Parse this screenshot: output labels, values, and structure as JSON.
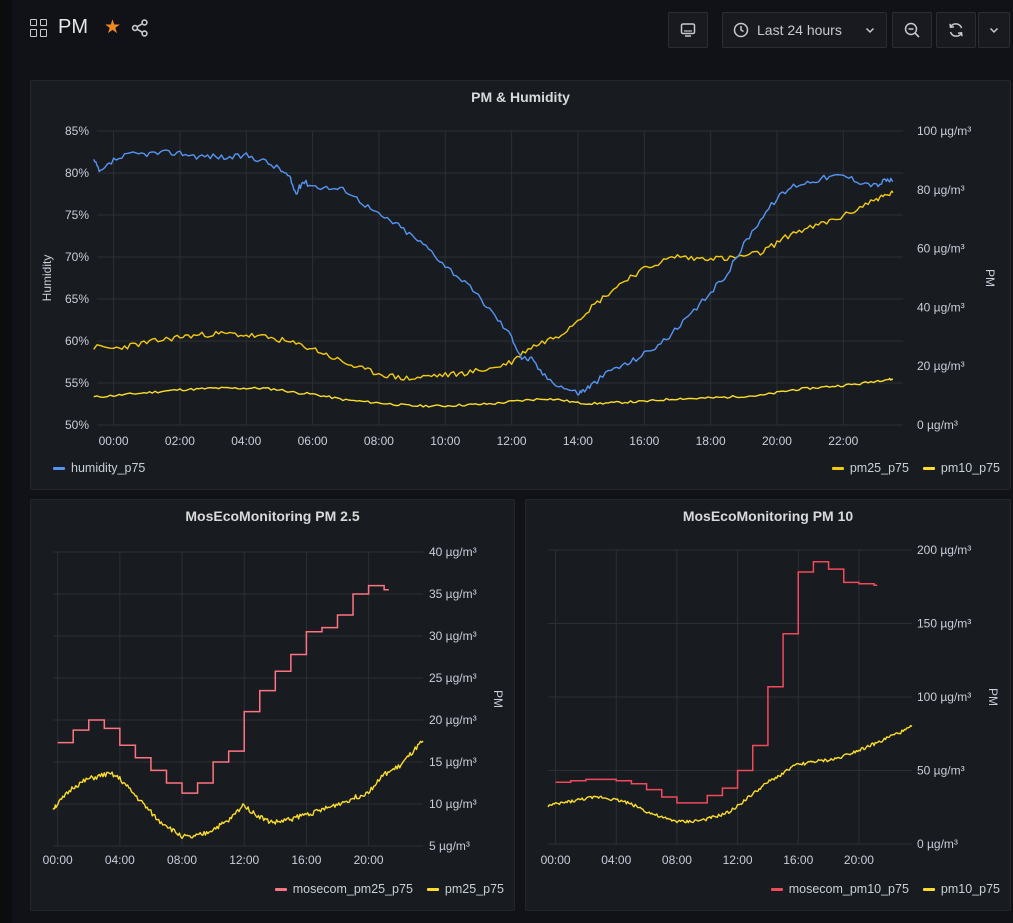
{
  "header": {
    "title": "PM",
    "time_range": "Last 24 hours",
    "icons": [
      "dashboard-grid-icon",
      "star-icon",
      "share-icon",
      "tv-mode-icon",
      "clock-icon",
      "chevron-down-icon",
      "zoom-out-icon",
      "refresh-icon",
      "chevron-down-icon"
    ]
  },
  "colors": {
    "humidity": "#5794f2",
    "pm25": "#f2cc0c",
    "pm10": "#fade2a",
    "mosecom": "#ff7383",
    "mosecom_pm10": "#f2495c",
    "accent_star": "#f2881f"
  },
  "panels": {
    "main": {
      "title": "PM & Humidity",
      "left_axis_label": "Humidity",
      "right_axis_label": "PM",
      "left_ticks": [
        "85%",
        "80%",
        "75%",
        "70%",
        "65%",
        "60%",
        "55%",
        "50%"
      ],
      "right_ticks": [
        "100 µg/m³",
        "80 µg/m³",
        "60 µg/m³",
        "40 µg/m³",
        "20 µg/m³",
        "0 µg/m³"
      ],
      "x_ticks": [
        "00:00",
        "02:00",
        "04:00",
        "06:00",
        "08:00",
        "10:00",
        "12:00",
        "14:00",
        "16:00",
        "18:00",
        "20:00",
        "22:00"
      ],
      "legend_left": [
        "humidity_p75"
      ],
      "legend_right": [
        "pm25_p75",
        "pm10_p75"
      ]
    },
    "pm25": {
      "title": "MosEcoMonitoring PM 2.5",
      "right_axis_label": "PM",
      "right_ticks": [
        "40 µg/m³",
        "35 µg/m³",
        "30 µg/m³",
        "25 µg/m³",
        "20 µg/m³",
        "15 µg/m³",
        "10 µg/m³",
        "5 µg/m³"
      ],
      "x_ticks": [
        "00:00",
        "04:00",
        "08:00",
        "12:00",
        "16:00",
        "20:00"
      ],
      "legend": [
        "mosecom_pm25_p75",
        "pm25_p75"
      ]
    },
    "pm10": {
      "title": "MosEcoMonitoring PM 10",
      "right_axis_label": "PM",
      "right_ticks": [
        "200 µg/m³",
        "150 µg/m³",
        "100 µg/m³",
        "50 µg/m³",
        "0 µg/m³"
      ],
      "x_ticks": [
        "00:00",
        "04:00",
        "08:00",
        "12:00",
        "16:00",
        "20:00"
      ],
      "legend": [
        "mosecom_pm10_p75",
        "pm10_p75"
      ]
    }
  },
  "chart_data": [
    {
      "type": "line",
      "title": "PM & Humidity",
      "x_unit": "hour",
      "xlim": [
        -0.5,
        23.8
      ],
      "ylabel": "Humidity",
      "ylim": [
        50,
        85
      ],
      "y2label": "PM",
      "y2lim": [
        0,
        100
      ],
      "series": [
        {
          "name": "humidity_p75",
          "axis": "left",
          "unit": "%",
          "x": [
            -0.6,
            -0.4,
            0,
            0.5,
            1,
            1.5,
            2,
            2.5,
            3,
            3.5,
            4,
            4.5,
            5,
            5.3,
            5.5,
            5.7,
            6,
            6.5,
            7,
            7.5,
            8,
            8.5,
            9,
            9.5,
            10,
            10.5,
            11,
            11.5,
            12,
            12.3,
            12.6,
            13,
            13.5,
            14,
            14.2,
            14.5,
            15,
            15.5,
            16,
            16.5,
            17,
            17.5,
            18,
            18.5,
            19,
            19.5,
            20,
            20.5,
            21,
            21.5,
            22,
            22.5,
            23,
            23.3,
            23.5
          ],
          "y": [
            81.5,
            80,
            81.5,
            82.2,
            82.3,
            82.4,
            82.4,
            82,
            82,
            81.8,
            82.1,
            81.5,
            80.5,
            79.5,
            77.5,
            79,
            78.5,
            78.2,
            78,
            76.5,
            75,
            74,
            72.5,
            71,
            69,
            67.3,
            65.3,
            63,
            60.5,
            58,
            57.8,
            55.8,
            54.6,
            53.8,
            54.2,
            55,
            56.6,
            57.3,
            58.5,
            59.7,
            61.5,
            63.5,
            65.8,
            68,
            71.5,
            74.5,
            77,
            78.5,
            79,
            79.5,
            79.7,
            79,
            78.5,
            79.2,
            79
          ]
        },
        {
          "name": "pm25_p75",
          "axis": "right",
          "unit": "µg/m³",
          "x": [
            -0.6,
            0,
            0.5,
            1,
            1.5,
            2,
            2.5,
            3,
            3.5,
            4,
            4.5,
            5,
            5.5,
            6,
            6.5,
            7,
            7.5,
            8,
            8.5,
            9,
            9.5,
            10,
            10.5,
            11,
            11.5,
            12,
            12.5,
            13,
            13.5,
            14,
            14.5,
            15,
            15.5,
            16,
            16.5,
            17,
            17.5,
            18,
            18.5,
            19,
            19.5,
            20,
            20.5,
            21,
            21.5,
            22,
            22.5,
            23,
            23.3,
            23.5
          ],
          "y": [
            26.5,
            26,
            27,
            28,
            29,
            30,
            30.5,
            31,
            31,
            30.5,
            30,
            29,
            27.5,
            26,
            23.5,
            21,
            19,
            17.5,
            16.3,
            15.7,
            16.7,
            17,
            17.5,
            18.5,
            19.5,
            21.5,
            26,
            28.5,
            31,
            36,
            41,
            45.5,
            50,
            53,
            55.5,
            57.5,
            56.5,
            57,
            56.5,
            57.5,
            58.5,
            62,
            65.5,
            67,
            69,
            71,
            74,
            77,
            78,
            79
          ]
        },
        {
          "name": "pm10_p75",
          "axis": "right",
          "unit": "µg/m³",
          "x": [
            -0.6,
            0,
            0.5,
            1,
            1.5,
            2,
            2.5,
            3,
            3.5,
            4,
            4.5,
            5,
            5.5,
            6,
            6.5,
            7,
            7.5,
            8,
            8.5,
            9,
            9.5,
            10,
            10.5,
            11,
            11.5,
            12,
            12.5,
            13,
            13.5,
            14,
            14.5,
            15,
            15.5,
            16,
            16.5,
            17,
            17.5,
            18,
            18.5,
            19,
            19.5,
            20,
            20.5,
            21,
            21.5,
            22,
            22.5,
            23,
            23.3,
            23.5
          ],
          "y": [
            9.5,
            10,
            10.5,
            11,
            11.5,
            12,
            12.2,
            12.5,
            12.5,
            12.5,
            12.5,
            12,
            11,
            10.5,
            9.5,
            8.5,
            8,
            7.5,
            7,
            6.5,
            6.5,
            6.5,
            6.8,
            7,
            7.3,
            8,
            8.5,
            9,
            8.5,
            7.5,
            7.3,
            7.5,
            7.8,
            8,
            8.5,
            9,
            9,
            9.2,
            9.5,
            9.8,
            10,
            11,
            12,
            12.5,
            13,
            13.5,
            14,
            15,
            15.5,
            15.5
          ]
        }
      ]
    },
    {
      "type": "line",
      "title": "MosEcoMonitoring PM 2.5",
      "x_unit": "hour",
      "xlim": [
        -0.3,
        23.5
      ],
      "ylabel": "PM",
      "ylim": [
        5,
        40
      ],
      "series": [
        {
          "name": "mosecom_pm25_p75",
          "unit": "µg/m³",
          "step": true,
          "x": [
            0,
            1,
            2,
            3,
            4,
            5,
            6,
            7,
            8,
            9,
            10,
            11,
            12,
            13,
            14,
            15,
            16,
            17,
            18,
            19,
            20,
            21,
            21.3
          ],
          "y": [
            17.3,
            18.8,
            20,
            19,
            17,
            15.5,
            14,
            12.5,
            11.3,
            12.5,
            15,
            16.3,
            21,
            23.5,
            25.8,
            27.8,
            30.5,
            31,
            32.5,
            35,
            36,
            35.5,
            35.5
          ]
        },
        {
          "name": "pm25_p75",
          "unit": "µg/m³",
          "x": [
            -0.3,
            0,
            0.5,
            1,
            1.5,
            2,
            2.5,
            3,
            3.5,
            4,
            4.5,
            5,
            5.5,
            6,
            6.5,
            7,
            7.5,
            8,
            8.5,
            9,
            9.5,
            10,
            10.5,
            11,
            11.5,
            12,
            12.5,
            13,
            13.5,
            14,
            14.5,
            15,
            15.5,
            16,
            16.5,
            17,
            17.5,
            18,
            18.5,
            19,
            19.5,
            20,
            20.5,
            21,
            21.5,
            22,
            22.5,
            23,
            23.5
          ],
          "y": [
            9.5,
            10,
            11,
            12,
            12.5,
            13,
            13.2,
            13.5,
            13.5,
            13,
            12,
            11,
            10,
            9,
            8,
            7.5,
            6.7,
            6.2,
            6,
            6.2,
            6.5,
            7,
            7.5,
            8,
            9,
            10,
            9,
            8.5,
            8,
            7.8,
            8,
            8.2,
            8.5,
            8.8,
            9,
            9.3,
            9.6,
            10,
            10.3,
            10.7,
            11,
            11.5,
            12.5,
            13.5,
            14,
            14.5,
            15.5,
            16.5,
            17.5
          ]
        }
      ]
    },
    {
      "type": "line",
      "title": "MosEcoMonitoring PM 10",
      "x_unit": "hour",
      "xlim": [
        -0.5,
        23.5
      ],
      "ylabel": "PM",
      "ylim": [
        0,
        200
      ],
      "series": [
        {
          "name": "mosecom_pm10_p75",
          "unit": "µg/m³",
          "step": true,
          "x": [
            0,
            1,
            2,
            3,
            4,
            5,
            6,
            7,
            8,
            9,
            10,
            11,
            12,
            13,
            14,
            15,
            16,
            17,
            18,
            19,
            20,
            21,
            21.2
          ],
          "y": [
            42,
            43,
            44,
            44,
            43,
            41,
            37,
            32,
            28,
            28,
            33,
            38,
            50,
            67,
            107,
            143,
            185,
            192,
            187,
            178,
            177,
            176,
            176
          ]
        },
        {
          "name": "pm10_p75",
          "unit": "µg/m³",
          "x": [
            -0.5,
            0,
            0.5,
            1,
            1.5,
            2,
            2.5,
            3,
            3.5,
            4,
            4.5,
            5,
            5.5,
            6,
            6.5,
            7,
            7.5,
            8,
            8.5,
            9,
            9.5,
            10,
            10.5,
            11,
            11.5,
            12,
            12.5,
            13,
            13.5,
            14,
            14.5,
            15,
            15.5,
            16,
            16.5,
            17,
            17.5,
            18,
            18.5,
            19,
            19.5,
            20,
            20.5,
            21,
            21.5,
            22,
            22.5,
            23,
            23.5
          ],
          "y": [
            26,
            27,
            28,
            29,
            30,
            31,
            31.5,
            32,
            31,
            30,
            29,
            27,
            25,
            22,
            20,
            18,
            16.5,
            15.5,
            15,
            15.5,
            16,
            17,
            18.5,
            20,
            22,
            26,
            30,
            34,
            38,
            42,
            45,
            48,
            52,
            54,
            55,
            56,
            56.5,
            57,
            58,
            60,
            62,
            64,
            66,
            68,
            70,
            73,
            75,
            77,
            80
          ]
        }
      ]
    }
  ]
}
